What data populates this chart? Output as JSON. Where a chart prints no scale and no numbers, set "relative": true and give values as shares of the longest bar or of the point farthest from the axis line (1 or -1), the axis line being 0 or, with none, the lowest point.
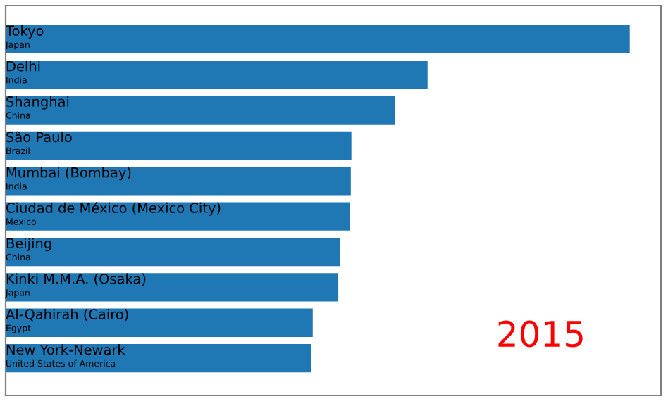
{
  "chart_data": {
    "type": "bar",
    "orientation": "horizontal",
    "relative": true,
    "color": "#1f77b4",
    "categories": [
      "Tokyo",
      "Delhi",
      "Shanghai",
      "São Paulo",
      "Mumbai (Bombay)",
      "Ciudad de México (Mexico City)",
      "Beijing",
      "Kinki M.M.A. (Osaka)",
      "Al-Qahirah (Cairo)",
      "New York-Newark"
    ],
    "values": [
      1,
      0.676,
      0.624,
      0.554,
      0.553,
      0.551,
      0.536,
      0.533,
      0.492,
      0.489
    ],
    "annotations": [
      {
        "text": "Japan",
        "y": "Tokyo"
      },
      {
        "text": "India",
        "y": "Delhi"
      },
      {
        "text": "China",
        "y": "Shanghai"
      },
      {
        "text": "Brazil",
        "y": "São Paulo"
      },
      {
        "text": "India",
        "y": "Mumbai (Bombay)"
      },
      {
        "text": "Mexico",
        "y": "Ciudad de México (Mexico City)"
      },
      {
        "text": "China",
        "y": "Beijing"
      },
      {
        "text": "Japan",
        "y": "Kinki M.M.A. (Osaka)"
      },
      {
        "text": "Egypt",
        "y": "Al-Qahirah (Cairo)"
      },
      {
        "text": "United States of America",
        "y": "New York-Newark"
      },
      "2015"
    ],
    "legend": false
  }
}
